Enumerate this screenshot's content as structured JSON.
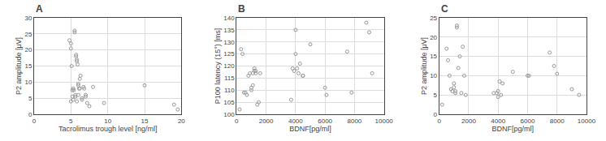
{
  "chart_data": [
    {
      "type": "scatter",
      "title": "A",
      "x": [
        4.8,
        5.0,
        5.0,
        5.1,
        5.2,
        5.3,
        5.4,
        5.5,
        5.5,
        5.6,
        5.6,
        5.7,
        5.7,
        5.8,
        5.8,
        5.9,
        6.0,
        6.0,
        6.1,
        6.2,
        6.3,
        6.5,
        6.5,
        6.7,
        6.8,
        7.0,
        7.0,
        7.2,
        7.5,
        8.0,
        9.5,
        15.0,
        19.0,
        19.5,
        5.0,
        5.2,
        5.3,
        5.8,
        6.0,
        6.2
      ],
      "values": [
        23.0,
        22.0,
        20.5,
        15.0,
        7.5,
        8.0,
        7.5,
        25.5,
        26.0,
        5.5,
        6.0,
        18.0,
        18.5,
        17.0,
        16.5,
        15.5,
        9.5,
        9.0,
        8.0,
        11.0,
        12.0,
        5.0,
        4.5,
        8.5,
        8.0,
        6.0,
        5.5,
        3.5,
        2.5,
        8.5,
        3.5,
        9.0,
        3.0,
        1.5,
        4.0,
        5.5,
        4.5,
        4.0,
        6.0,
        8.0
      ],
      "xlabel": "Tacrolimus trough level [ng/ml]",
      "ylabel": "P2 amplitude [μV]",
      "xlim": [
        0,
        20
      ],
      "ylim": [
        0,
        30
      ],
      "xticks": [
        0,
        5,
        10,
        15,
        20
      ],
      "yticks": [
        0,
        5,
        10,
        15,
        20,
        25,
        30
      ],
      "color": "#999999",
      "marker": "circle-open",
      "grid": true
    },
    {
      "type": "scatter",
      "title": "B",
      "x": [
        200,
        300,
        400,
        500,
        600,
        700,
        800,
        900,
        1000,
        1000,
        1100,
        1100,
        1200,
        1200,
        1300,
        1300,
        1400,
        1500,
        1600,
        3700,
        3800,
        3900,
        4000,
        4000,
        4100,
        4200,
        4300,
        4500,
        4500,
        5000,
        6000,
        6100,
        7500,
        7800,
        8800,
        9000,
        9200
      ],
      "values": [
        102,
        127,
        125,
        109,
        109,
        108,
        116,
        117,
        111,
        110,
        112,
        117,
        118,
        119,
        117,
        118,
        104,
        105,
        117,
        106,
        119,
        118,
        135,
        125,
        119,
        117,
        121,
        116,
        116,
        129,
        111,
        108,
        126,
        109,
        138,
        134,
        117
      ],
      "xlabel": "BDNF[pg/ml]",
      "ylabel": "P100 latency (15°) [ms]",
      "xlim": [
        0,
        10000
      ],
      "ylim": [
        100,
        140
      ],
      "xticks": [
        0,
        2000,
        4000,
        6000,
        8000,
        10000
      ],
      "yticks": [
        100,
        105,
        110,
        115,
        120,
        125,
        130,
        135,
        140
      ],
      "color": "#999999",
      "marker": "circle-open",
      "grid": true
    },
    {
      "type": "scatter",
      "title": "C",
      "x": [
        200,
        500,
        600,
        700,
        800,
        900,
        1000,
        1000,
        1100,
        1100,
        1200,
        1200,
        1300,
        1400,
        1500,
        1600,
        1700,
        1800,
        3700,
        3900,
        4000,
        4000,
        4100,
        4200,
        4300,
        5000,
        6000,
        6100,
        7500,
        7800,
        8000,
        9000,
        9500
      ],
      "values": [
        2.5,
        17.0,
        14.0,
        10.0,
        6.5,
        6.0,
        8.0,
        7.0,
        6.0,
        5.5,
        22.5,
        23.0,
        12.0,
        15.0,
        5.5,
        17.5,
        10.0,
        5.0,
        5.5,
        5.5,
        4.5,
        6.0,
        8.5,
        5.0,
        8.0,
        11.0,
        10.0,
        10.0,
        16.0,
        12.5,
        10.5,
        6.5,
        5.0
      ],
      "xlabel": "BDNF[pg/ml]",
      "ylabel": "P2 amplitude [μV]",
      "xlim": [
        0,
        10000
      ],
      "ylim": [
        0,
        25
      ],
      "xticks": [
        0,
        2000,
        4000,
        6000,
        8000,
        10000
      ],
      "yticks": [
        0,
        5,
        10,
        15,
        20,
        25
      ],
      "color": "#999999",
      "marker": "circle-open",
      "grid": true
    }
  ]
}
